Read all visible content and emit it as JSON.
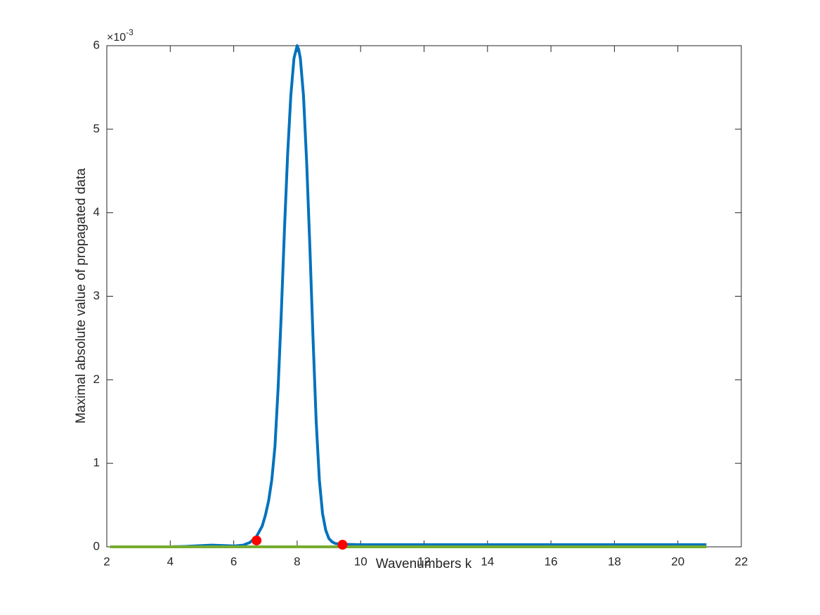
{
  "chart_data": {
    "type": "line",
    "x_label": "Wavenumbers k",
    "y_label": "Maximal absolute value of propagated data",
    "y_multiplier": {
      "base": "×10",
      "exponent": "-3"
    },
    "xlim": [
      2,
      22
    ],
    "xticks": [
      2,
      4,
      6,
      8,
      10,
      12,
      14,
      16,
      18,
      20,
      22
    ],
    "ylim": [
      0,
      6
    ],
    "yticks": [
      0,
      1,
      2,
      3,
      4,
      5,
      6
    ],
    "box": true,
    "series": [
      {
        "color": "#0072bd",
        "x": [
          2.1,
          3,
          4,
          4.5,
          5,
          5.3,
          5.7,
          6,
          6.3,
          6.5,
          6.7,
          6.9,
          7.0,
          7.1,
          7.2,
          7.3,
          7.4,
          7.5,
          7.6,
          7.7,
          7.8,
          7.9,
          8.0,
          8.05,
          8.1,
          8.2,
          8.3,
          8.4,
          8.5,
          8.6,
          8.7,
          8.8,
          8.9,
          9.0,
          9.1,
          9.2,
          9.4,
          10,
          15,
          20.9
        ],
        "values": [
          0,
          0,
          0,
          0.005,
          0.015,
          0.02,
          0.015,
          0.01,
          0.02,
          0.05,
          0.11,
          0.25,
          0.38,
          0.55,
          0.8,
          1.2,
          1.9,
          2.8,
          3.8,
          4.7,
          5.4,
          5.85,
          6.0,
          5.95,
          5.85,
          5.4,
          4.6,
          3.6,
          2.5,
          1.5,
          0.8,
          0.4,
          0.2,
          0.1,
          0.06,
          0.04,
          0.03,
          0.025,
          0.025,
          0.025
        ]
      },
      {
        "color": "#77ac30",
        "x": [
          2.1,
          20.9
        ],
        "values": [
          0,
          0
        ]
      },
      {
        "color": "#ff0000",
        "marker": "dot",
        "x": [
          6.72,
          9.43
        ],
        "values": [
          0.076,
          0.025
        ]
      }
    ]
  }
}
